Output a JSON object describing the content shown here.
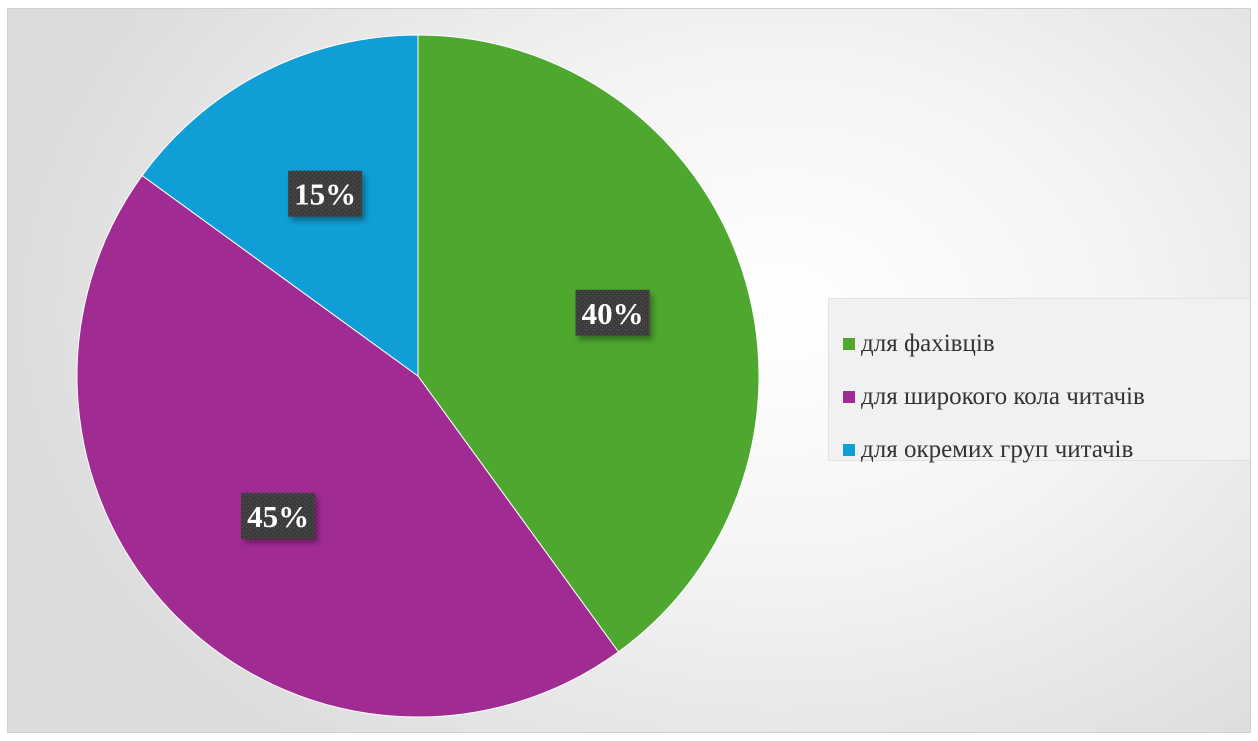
{
  "chart_data": {
    "type": "pie",
    "categories": [
      "для фахівців",
      "для широкого кола читачів",
      "для окремих груп читачів"
    ],
    "values": [
      40,
      45,
      15
    ],
    "data_labels": [
      "40%",
      "45%",
      "15%"
    ],
    "colors": [
      "#4ea72e",
      "#a02b93",
      "#0f9ed5"
    ],
    "start_angle_deg": 0,
    "direction": "clockwise",
    "legend_position": "right",
    "title": ""
  }
}
